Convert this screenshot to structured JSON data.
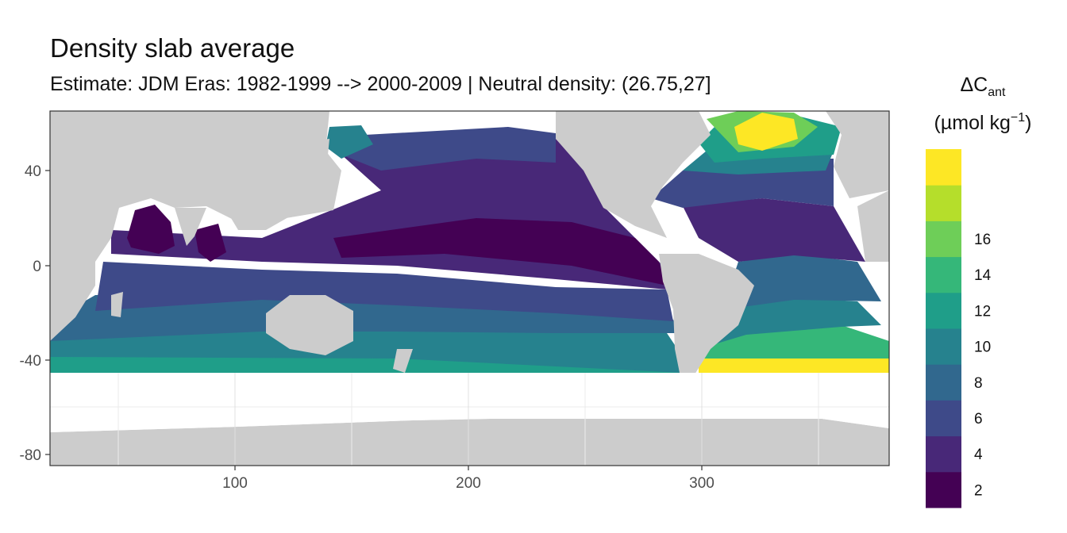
{
  "title": "Density slab average",
  "subtitle": "Estimate: JDM Eras: 1982-1999 --> 2000-2009 | Neutral density: (26.75,27]",
  "legend": {
    "title_main": "ΔC",
    "title_sub": "ant",
    "unit_prefix": "(µmol kg",
    "unit_sup": "−1",
    "unit_suffix": ")",
    "bins": [
      {
        "label": "2",
        "color": "#440154"
      },
      {
        "label": "4",
        "color": "#482878"
      },
      {
        "label": "6",
        "color": "#3e4a89"
      },
      {
        "label": "8",
        "color": "#31688e"
      },
      {
        "label": "10",
        "color": "#26828e"
      },
      {
        "label": "12",
        "color": "#1f9e89"
      },
      {
        "label": "14",
        "color": "#35b779"
      },
      {
        "label": "16",
        "color": "#6ece58"
      },
      {
        "label": "",
        "color": "#b5de2b"
      },
      {
        "label": "",
        "color": "#fde725"
      }
    ]
  },
  "map": {
    "x_ticks": [
      "100",
      "200",
      "300"
    ],
    "y_ticks": [
      "40",
      "0",
      "-40",
      "-80"
    ],
    "land_color": "#cccccc",
    "nodata_color": "#ffffff",
    "x_range": [
      20,
      380
    ],
    "y_range": [
      -85,
      65
    ]
  },
  "chart_data": {
    "type": "heatmap",
    "title": "Density slab average",
    "subtitle": "Estimate: JDM Eras: 1982-1999 --> 2000-2009 | Neutral density: (26.75,27]",
    "xlabel": "",
    "ylabel": "",
    "xlim": [
      20,
      380
    ],
    "ylim": [
      -85,
      65
    ],
    "x_ticks": [
      100,
      200,
      300
    ],
    "y_ticks": [
      40,
      0,
      -40,
      -80
    ],
    "legend_title": "ΔCant (µmol kg−1)",
    "legend_placement": "right",
    "color_breaks": [
      0,
      2,
      4,
      6,
      8,
      10,
      12,
      14,
      16,
      18
    ],
    "approx_regional_values": {
      "central_equatorial_pacific": 1,
      "north_pacific": 3,
      "south_indian_pacific_45S": 11,
      "subpolar_north_atlantic": 17,
      "south_atlantic_45S": 17
    }
  }
}
